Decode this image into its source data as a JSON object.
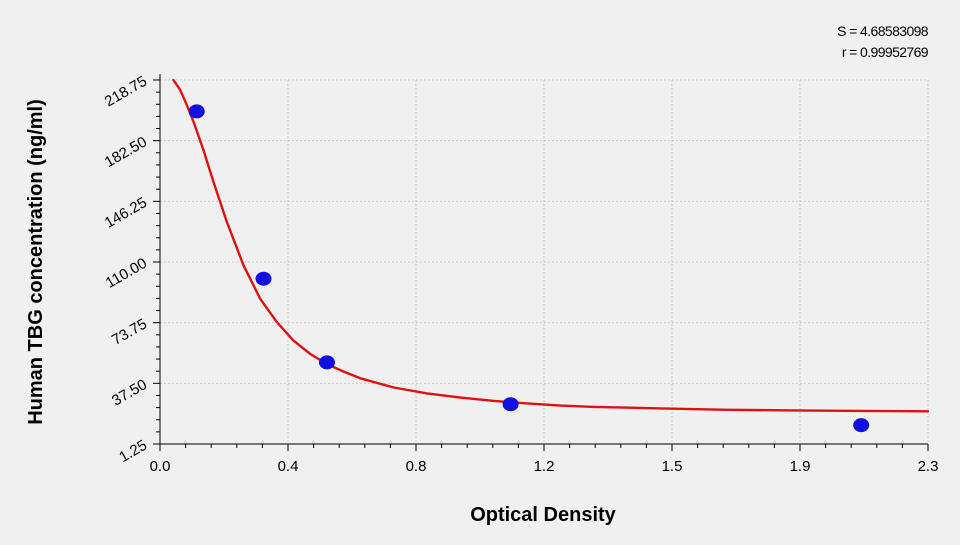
{
  "stats": {
    "s_line": "S = 4.68583098",
    "r_line": "r = 0.99952769"
  },
  "colors": {
    "background": "#f0f0f0",
    "curve": "#e01010",
    "points": "#1010e0",
    "grid": "#c8c8c8",
    "axis": "#000000"
  },
  "chart_data": {
    "type": "scatter",
    "xlabel": "Optical Density",
    "ylabel": "Human TBG concentration (ng/ml)",
    "xlim": [
      0.0,
      2.3
    ],
    "ylim": [
      1.25,
      218.75
    ],
    "x_ticks": [
      "0.0",
      "0.4",
      "0.8",
      "1.2",
      "1.5",
      "1.9",
      "2.3"
    ],
    "y_ticks": [
      "1.25",
      "37.50",
      "73.75",
      "110.00",
      "146.25",
      "182.50",
      "218.75"
    ],
    "grid": true,
    "series": [
      {
        "kind": "points",
        "x": [
          0.11,
          0.31,
          0.5,
          1.05,
          2.1
        ],
        "y": [
          200,
          100,
          50,
          25,
          12.5
        ]
      },
      {
        "kind": "fitted-curve",
        "x": [
          0.04,
          0.06,
          0.08,
          0.1,
          0.13,
          0.16,
          0.2,
          0.25,
          0.3,
          0.35,
          0.4,
          0.45,
          0.5,
          0.55,
          0.6,
          0.7,
          0.8,
          0.9,
          1.0,
          1.1,
          1.2,
          1.3,
          1.5,
          1.7,
          1.9,
          2.1,
          2.3
        ],
        "y": [
          218.75,
          213,
          204,
          194,
          177,
          158,
          134,
          108,
          88,
          74,
          63,
          55,
          49,
          44.5,
          40.5,
          35,
          31.5,
          29,
          27,
          25.5,
          24.2,
          23.4,
          22.5,
          21.7,
          21.3,
          21.0,
          20.8
        ]
      }
    ]
  }
}
